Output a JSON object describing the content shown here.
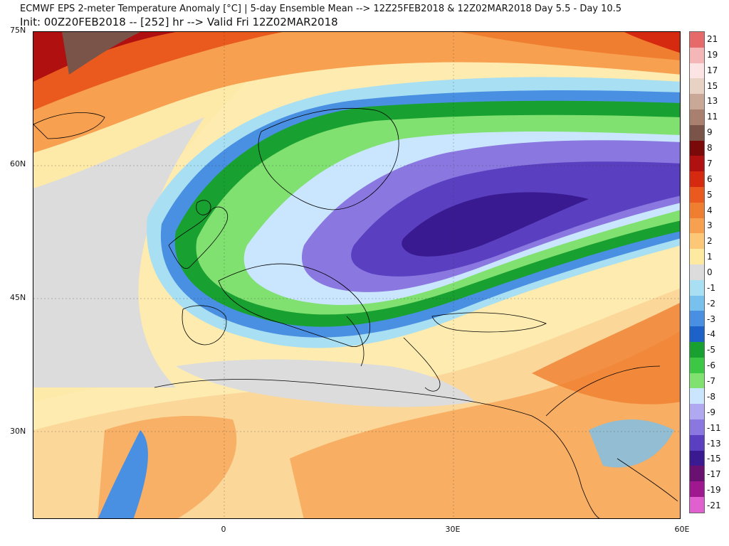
{
  "header": {
    "line1": "ECMWF EPS 2-meter Temperature Anomaly [°C] | 5-day Ensemble Mean --> 12Z25FEB2018 & 12Z02MAR2018   Day 5.5 - Day 10.5",
    "line2": "Init: 00Z20FEB2018 -- [252] hr --> Valid Fri 12Z02MAR2018"
  },
  "axes": {
    "lat_labels": [
      "75N",
      "60N",
      "45N",
      "30N"
    ],
    "lon_labels": [
      "0",
      "30E",
      "60E"
    ]
  },
  "colorbar": {
    "labels": [
      "21",
      "19",
      "17",
      "15",
      "13",
      "11",
      "9",
      "8",
      "7",
      "6",
      "5",
      "4",
      "3",
      "2",
      "1",
      "0",
      "-1",
      "-2",
      "-3",
      "-4",
      "-5",
      "-6",
      "-7",
      "-8",
      "-9",
      "-11",
      "-13",
      "-15",
      "-17",
      "-19",
      "-21"
    ],
    "colors": [
      "#e66a6a",
      "#f4b6b6",
      "#fde4e4",
      "#e8d2c4",
      "#c9a898",
      "#a98070",
      "#7a5448",
      "#7a0a0a",
      "#b01010",
      "#d62a10",
      "#ea5a1e",
      "#f07e30",
      "#f7a050",
      "#fcc878",
      "#fdeaa0",
      "#dcdcdc",
      "#a8dff2",
      "#78c0ee",
      "#4a90e2",
      "#1d62c8",
      "#18a030",
      "#3cc845",
      "#80e070",
      "#cae6ff",
      "#b0a8f0",
      "#8a78e0",
      "#5a40c0",
      "#3a1a90",
      "#6a1070",
      "#a01890",
      "#e060d0"
    ]
  }
}
